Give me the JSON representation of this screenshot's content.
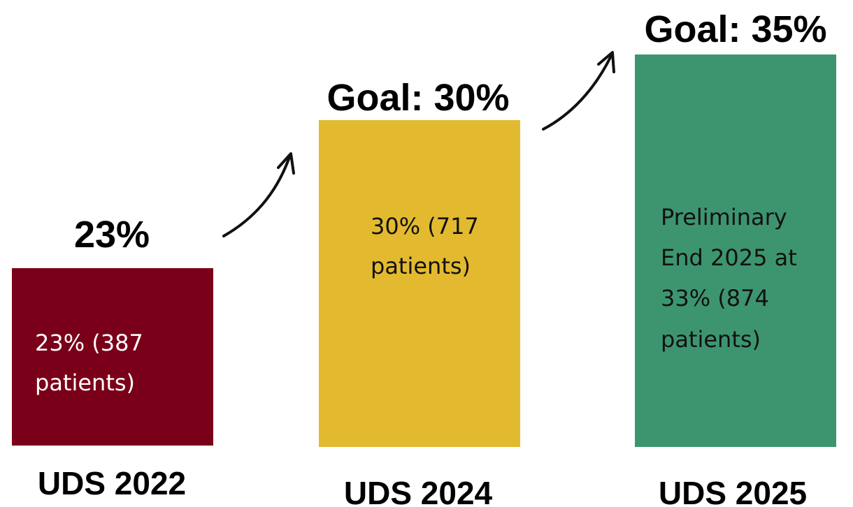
{
  "blocks": [
    {
      "heading": "23%",
      "text_lines": [
        "23% (387",
        "patients)"
      ],
      "label": "UDS 2022"
    },
    {
      "heading": "Goal: 30%",
      "text_lines": [
        "30% (717",
        "patients)"
      ],
      "label": "UDS 2024"
    },
    {
      "heading": "Goal: 35%",
      "text_lines": [
        "Preliminary",
        "End 2025 at",
        "33% (874",
        "patients)"
      ],
      "label": "UDS 2025"
    }
  ]
}
